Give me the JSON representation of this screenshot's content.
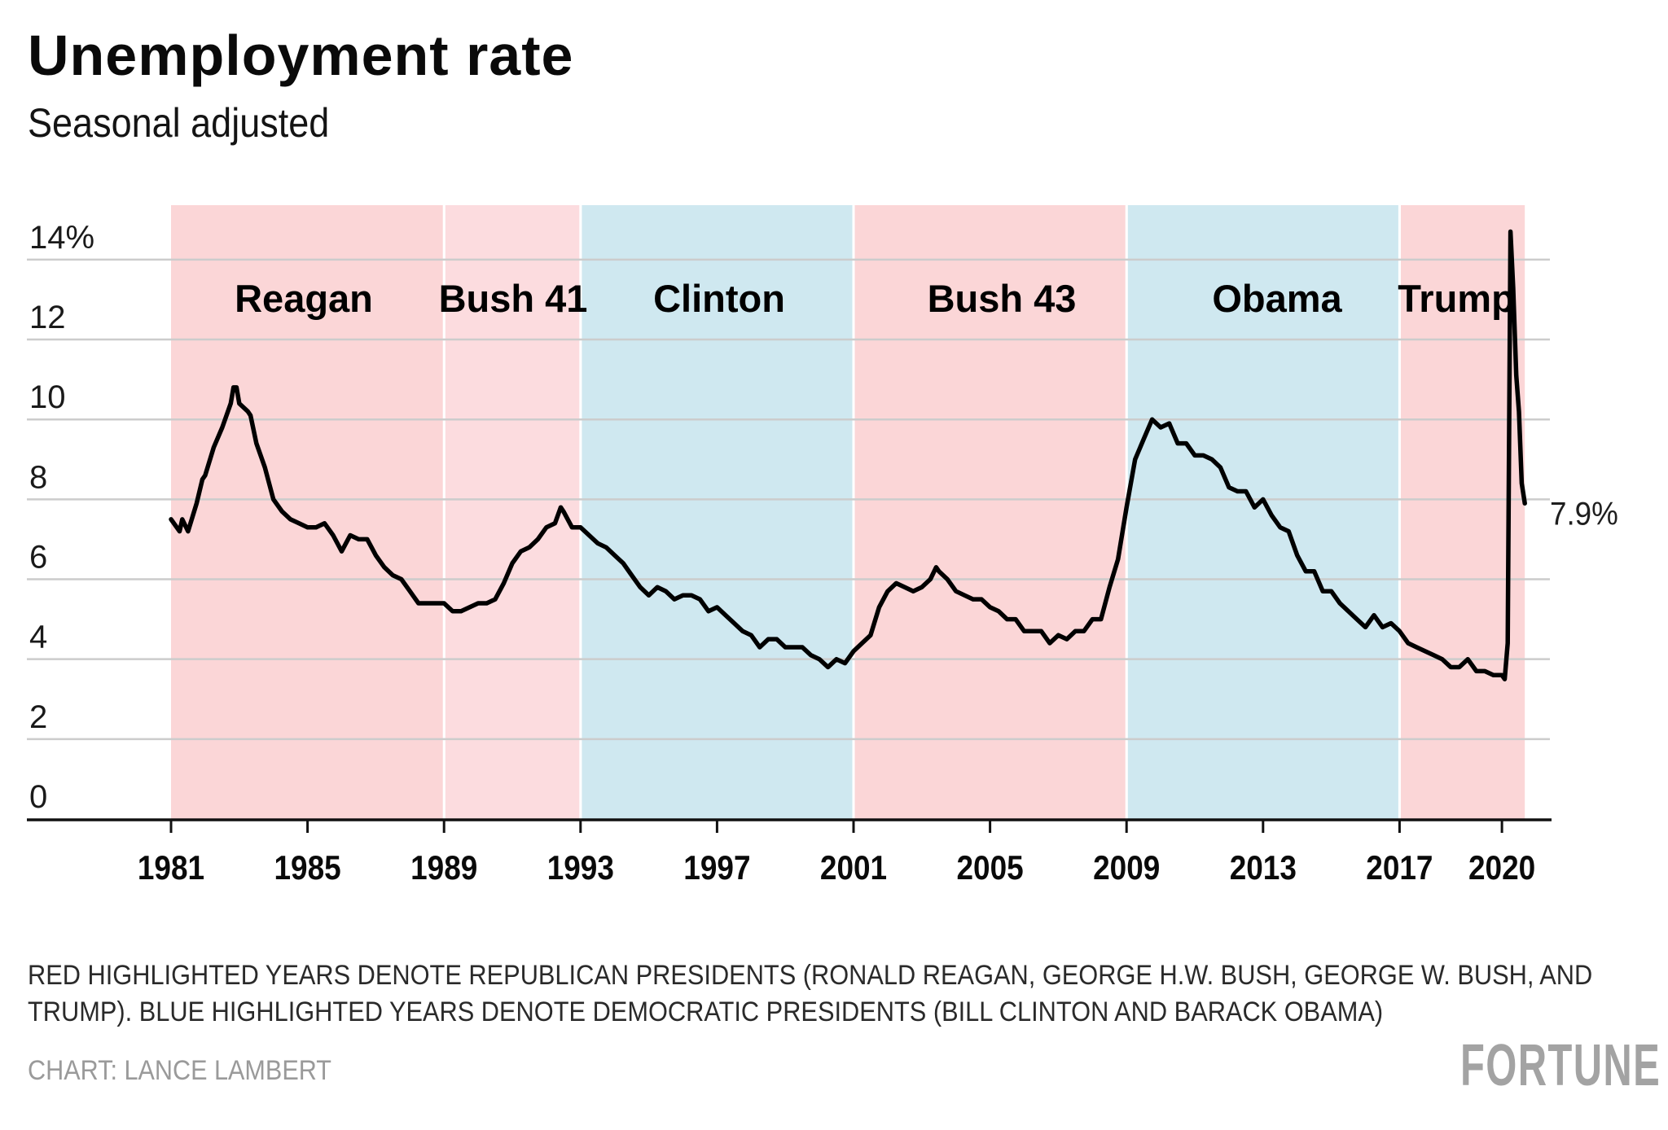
{
  "header": {
    "title": "Unemployment rate",
    "subtitle": "Seasonal adjusted"
  },
  "footer": {
    "note_line1": "RED HIGHLIGHTED YEARS DENOTE REPUBLICAN PRESIDENTS (RONALD REAGAN, GEORGE H.W. BUSH, GEORGE W. BUSH, AND",
    "note_line2": "TRUMP). BLUE HIGHLIGHTED YEARS DENOTE DEMOCRATIC PRESIDENTS (BILL CLINTON AND BARACK OBAMA)",
    "credit": "CHART: LANCE LAMBERT",
    "logo": "FORTUNE"
  },
  "colors": {
    "republican": "#fbd6d7",
    "republican_alt": "#fcdcdf",
    "democrat": "#cfe8f0",
    "line": "#000000",
    "grid": "#cccccc"
  },
  "chart_data": {
    "type": "line",
    "title": "Unemployment rate",
    "subtitle": "Seasonal adjusted",
    "xlabel": "",
    "ylabel": "",
    "xlim": [
      1981,
      2020.67
    ],
    "ylim": [
      0,
      14
    ],
    "grid": true,
    "y_ticks": [
      {
        "value": 0,
        "label": "0"
      },
      {
        "value": 2,
        "label": "2"
      },
      {
        "value": 4,
        "label": "4"
      },
      {
        "value": 6,
        "label": "6"
      },
      {
        "value": 8,
        "label": "8"
      },
      {
        "value": 10,
        "label": "10"
      },
      {
        "value": 12,
        "label": "12"
      },
      {
        "value": 14,
        "label": "14%"
      }
    ],
    "x_ticks": [
      {
        "value": 1981,
        "label": "1981"
      },
      {
        "value": 1985,
        "label": "1985"
      },
      {
        "value": 1989,
        "label": "1989"
      },
      {
        "value": 1993,
        "label": "1993"
      },
      {
        "value": 1997,
        "label": "1997"
      },
      {
        "value": 2001,
        "label": "2001"
      },
      {
        "value": 2005,
        "label": "2005"
      },
      {
        "value": 2009,
        "label": "2009"
      },
      {
        "value": 2013,
        "label": "2013"
      },
      {
        "value": 2017,
        "label": "2017"
      },
      {
        "value": 2020,
        "label": "2020"
      }
    ],
    "presidencies": [
      {
        "name": "Reagan",
        "party": "republican",
        "start": 1981,
        "end": 1989
      },
      {
        "name": "Bush 41",
        "party": "republican_alt",
        "start": 1989,
        "end": 1993
      },
      {
        "name": "Clinton",
        "party": "democrat",
        "start": 1993,
        "end": 2001
      },
      {
        "name": "Bush 43",
        "party": "republican",
        "start": 2001,
        "end": 2009
      },
      {
        "name": "Obama",
        "party": "democrat",
        "start": 2009,
        "end": 2017
      },
      {
        "name": "Trump",
        "party": "republican",
        "start": 2017,
        "end": 2020.67
      }
    ],
    "end_label": "7.9%",
    "series": [
      {
        "name": "Unemployment rate",
        "x": [
          1981.0,
          1981.25,
          1981.33,
          1981.5,
          1981.75,
          1981.92,
          1982.0,
          1982.25,
          1982.5,
          1982.75,
          1982.83,
          1982.92,
          1983.0,
          1983.25,
          1983.33,
          1983.5,
          1983.75,
          1984.0,
          1984.25,
          1984.5,
          1984.75,
          1985.0,
          1985.25,
          1985.5,
          1985.75,
          1986.0,
          1986.25,
          1986.5,
          1986.75,
          1987.0,
          1987.25,
          1987.5,
          1987.75,
          1988.0,
          1988.25,
          1988.5,
          1988.75,
          1989.0,
          1989.25,
          1989.5,
          1989.75,
          1990.0,
          1990.25,
          1990.5,
          1990.75,
          1991.0,
          1991.25,
          1991.5,
          1991.75,
          1992.0,
          1992.25,
          1992.42,
          1992.5,
          1992.75,
          1993.0,
          1993.25,
          1993.5,
          1993.75,
          1994.0,
          1994.25,
          1994.5,
          1994.75,
          1995.0,
          1995.25,
          1995.5,
          1995.75,
          1996.0,
          1996.25,
          1996.5,
          1996.75,
          1997.0,
          1997.25,
          1997.5,
          1997.75,
          1998.0,
          1998.25,
          1998.5,
          1998.75,
          1999.0,
          1999.25,
          1999.5,
          1999.75,
          2000.0,
          2000.25,
          2000.5,
          2000.75,
          2001.0,
          2001.25,
          2001.5,
          2001.75,
          2002.0,
          2002.25,
          2002.5,
          2002.75,
          2003.0,
          2003.25,
          2003.42,
          2003.5,
          2003.75,
          2004.0,
          2004.25,
          2004.5,
          2004.75,
          2005.0,
          2005.25,
          2005.5,
          2005.75,
          2006.0,
          2006.25,
          2006.5,
          2006.75,
          2007.0,
          2007.25,
          2007.5,
          2007.75,
          2008.0,
          2008.25,
          2008.5,
          2008.75,
          2009.0,
          2009.25,
          2009.5,
          2009.75,
          2010.0,
          2010.25,
          2010.5,
          2010.75,
          2011.0,
          2011.25,
          2011.5,
          2011.75,
          2012.0,
          2012.25,
          2012.5,
          2012.75,
          2013.0,
          2013.25,
          2013.5,
          2013.75,
          2014.0,
          2014.25,
          2014.5,
          2014.75,
          2015.0,
          2015.25,
          2015.5,
          2015.75,
          2016.0,
          2016.25,
          2016.5,
          2016.75,
          2017.0,
          2017.25,
          2017.5,
          2017.75,
          2018.0,
          2018.25,
          2018.5,
          2018.75,
          2019.0,
          2019.25,
          2019.5,
          2019.75,
          2020.0,
          2020.08,
          2020.17,
          2020.25,
          2020.33,
          2020.42,
          2020.5,
          2020.58,
          2020.67
        ],
        "values": [
          7.5,
          7.2,
          7.5,
          7.2,
          7.9,
          8.5,
          8.6,
          9.3,
          9.8,
          10.4,
          10.8,
          10.8,
          10.4,
          10.2,
          10.1,
          9.4,
          8.8,
          8.0,
          7.7,
          7.5,
          7.4,
          7.3,
          7.3,
          7.4,
          7.1,
          6.7,
          7.1,
          7.0,
          7.0,
          6.6,
          6.3,
          6.1,
          6.0,
          5.7,
          5.4,
          5.4,
          5.4,
          5.4,
          5.2,
          5.2,
          5.3,
          5.4,
          5.4,
          5.5,
          5.9,
          6.4,
          6.7,
          6.8,
          7.0,
          7.3,
          7.4,
          7.8,
          7.7,
          7.3,
          7.3,
          7.1,
          6.9,
          6.8,
          6.6,
          6.4,
          6.1,
          5.8,
          5.6,
          5.8,
          5.7,
          5.5,
          5.6,
          5.6,
          5.5,
          5.2,
          5.3,
          5.1,
          4.9,
          4.7,
          4.6,
          4.3,
          4.5,
          4.5,
          4.3,
          4.3,
          4.3,
          4.1,
          4.0,
          3.8,
          4.0,
          3.9,
          4.2,
          4.4,
          4.6,
          5.3,
          5.7,
          5.9,
          5.8,
          5.7,
          5.8,
          6.0,
          6.3,
          6.2,
          6.0,
          5.7,
          5.6,
          5.5,
          5.5,
          5.3,
          5.2,
          5.0,
          5.0,
          4.7,
          4.7,
          4.7,
          4.4,
          4.6,
          4.5,
          4.7,
          4.7,
          5.0,
          5.0,
          5.8,
          6.5,
          7.8,
          9.0,
          9.5,
          10.0,
          9.8,
          9.9,
          9.4,
          9.4,
          9.1,
          9.1,
          9.0,
          8.8,
          8.3,
          8.2,
          8.2,
          7.8,
          8.0,
          7.6,
          7.3,
          7.2,
          6.6,
          6.2,
          6.2,
          5.7,
          5.7,
          5.4,
          5.2,
          5.0,
          4.8,
          5.1,
          4.8,
          4.9,
          4.7,
          4.4,
          4.3,
          4.2,
          4.1,
          4.0,
          3.8,
          3.8,
          4.0,
          3.7,
          3.7,
          3.6,
          3.6,
          3.5,
          4.4,
          14.7,
          13.3,
          11.1,
          10.2,
          8.4,
          7.9
        ]
      }
    ]
  }
}
